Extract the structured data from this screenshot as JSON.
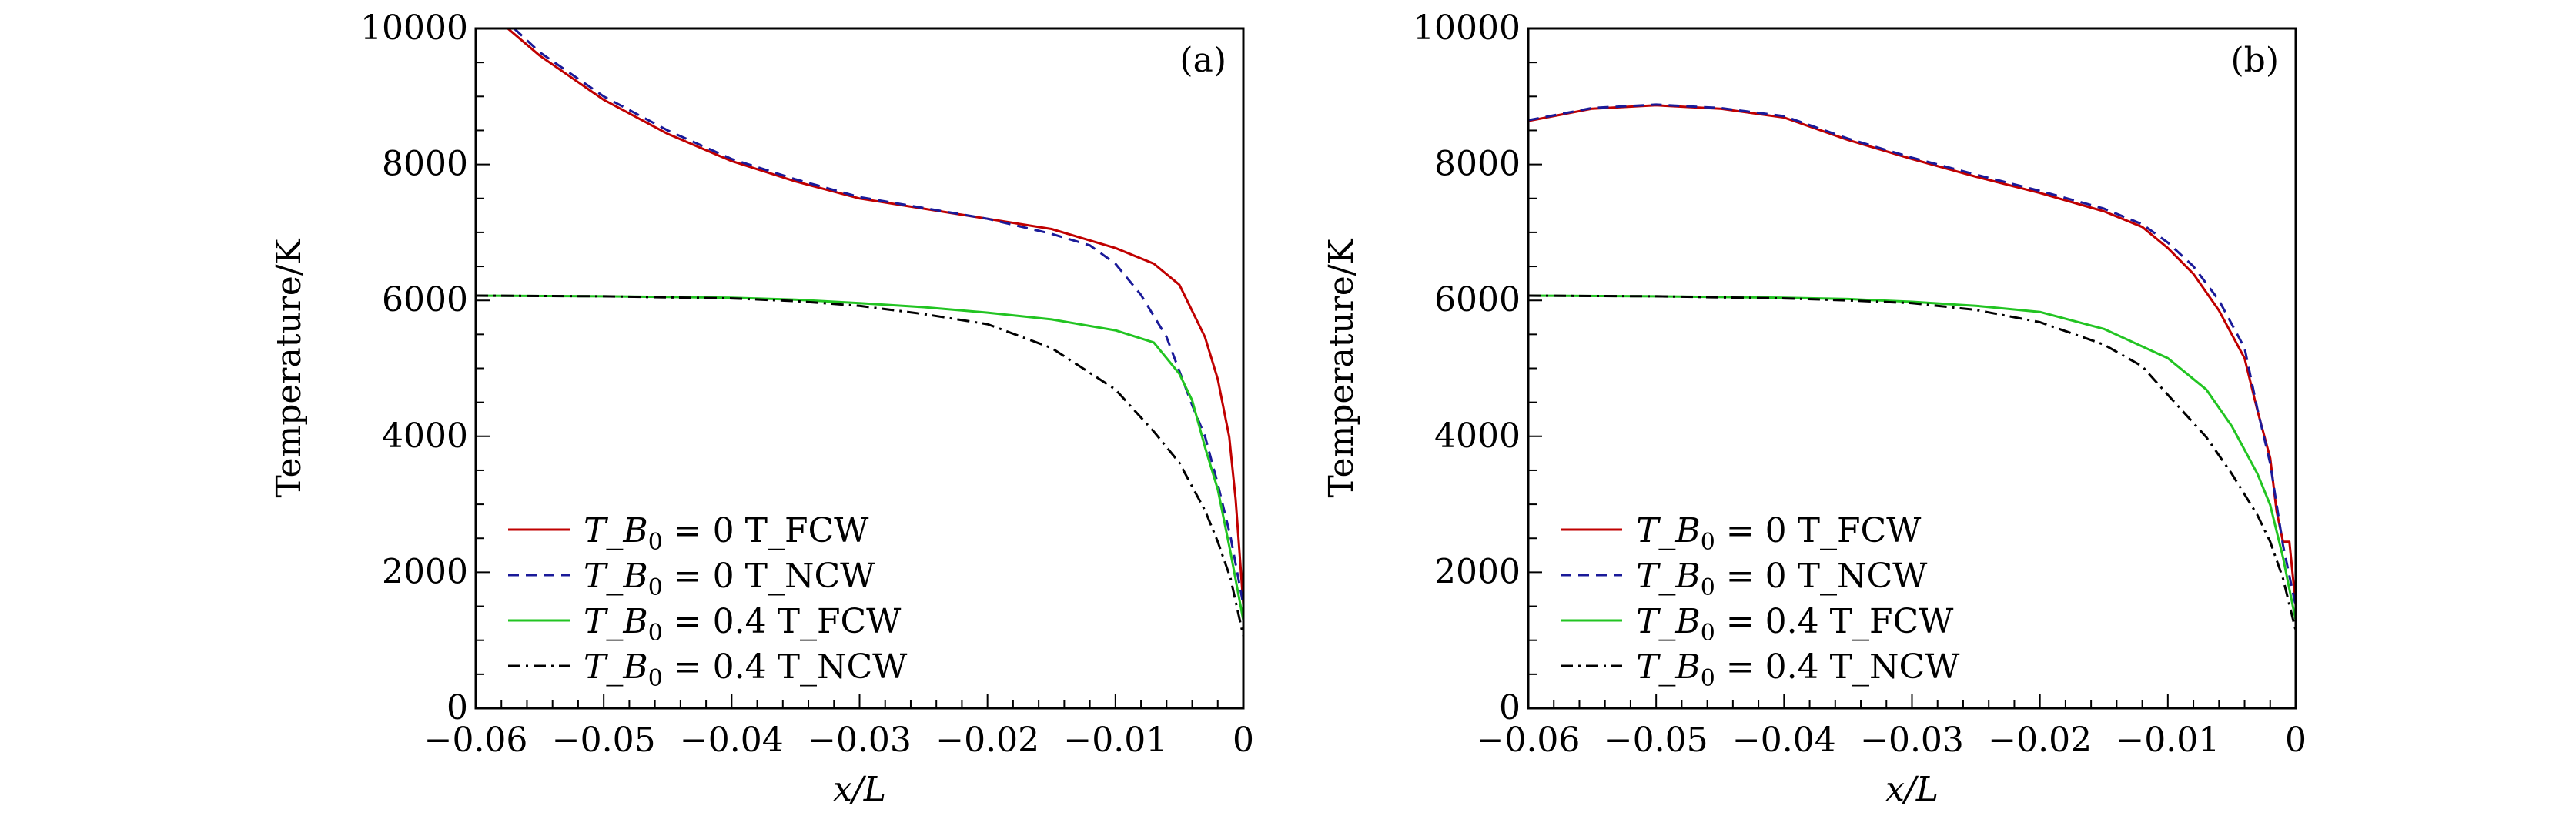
{
  "chart_data": [
    {
      "type": "line",
      "panel_label": "(a)",
      "xlabel": "x/L",
      "ylabel": "Temperature/K",
      "xlim": [
        -0.06,
        0
      ],
      "ylim": [
        0,
        10000
      ],
      "xticks": [
        -0.06,
        -0.05,
        -0.04,
        -0.03,
        -0.02,
        -0.01,
        0
      ],
      "xtick_labels": [
        "−0.06",
        "−0.05",
        "−0.04",
        "−0.03",
        "−0.02",
        "−0.01",
        "0"
      ],
      "yticks": [
        0,
        2000,
        4000,
        6000,
        8000,
        10000
      ],
      "ytick_labels": [
        "0",
        "2000",
        "4000",
        "6000",
        "8000",
        "10000"
      ],
      "grid": false,
      "legend_position": "bottom-left",
      "series": [
        {
          "name": "T_B0 = 0 T_FCW",
          "label_value": "0",
          "label_suffix": "T_FCW",
          "color": "#c00000",
          "dash": "solid",
          "x": [
            -0.0575,
            -0.055,
            -0.05,
            -0.045,
            -0.04,
            -0.035,
            -0.03,
            -0.025,
            -0.02,
            -0.015,
            -0.01,
            -0.007,
            -0.005,
            -0.003,
            -0.002,
            -0.0011,
            -0.0006,
            0
          ],
          "y": [
            10000,
            9600,
            8950,
            8450,
            8050,
            7750,
            7500,
            7350,
            7200,
            7050,
            6770,
            6540,
            6230,
            5460,
            4840,
            3990,
            3070,
            1520
          ]
        },
        {
          "name": "T_B0 = 0 T_NCW",
          "label_value": "0",
          "label_suffix": "T_NCW",
          "color": "#1a1a99",
          "dash": "dashed",
          "x": [
            -0.057,
            -0.055,
            -0.05,
            -0.045,
            -0.04,
            -0.035,
            -0.03,
            -0.025,
            -0.02,
            -0.015,
            -0.012,
            -0.01,
            -0.008,
            -0.006,
            -0.004,
            -0.003,
            -0.002,
            -0.001,
            0
          ],
          "y": [
            10000,
            9650,
            9000,
            8500,
            8080,
            7780,
            7520,
            7360,
            7200,
            6980,
            6810,
            6540,
            6080,
            5460,
            4460,
            4000,
            3300,
            2520,
            1520
          ]
        },
        {
          "name": "T_B0 = 0.4 T_FCW",
          "label_value": "0.4",
          "label_suffix": "T_FCW",
          "color": "#22c422",
          "dash": "solid",
          "x": [
            -0.06,
            -0.05,
            -0.04,
            -0.035,
            -0.03,
            -0.025,
            -0.02,
            -0.015,
            -0.01,
            -0.007,
            -0.005,
            -0.004,
            -0.003,
            -0.002,
            -0.001,
            0
          ],
          "y": [
            6070,
            6060,
            6040,
            6010,
            5960,
            5900,
            5820,
            5720,
            5560,
            5380,
            4920,
            4530,
            3840,
            3220,
            2290,
            1290
          ]
        },
        {
          "name": "T_B0 = 0.4 T_NCW",
          "label_value": "0.4",
          "label_suffix": "T_NCW",
          "color": "#000000",
          "dash": "dashdot",
          "x": [
            -0.06,
            -0.05,
            -0.04,
            -0.035,
            -0.03,
            -0.025,
            -0.02,
            -0.015,
            -0.01,
            -0.007,
            -0.005,
            -0.003,
            -0.002,
            -0.001,
            0
          ],
          "y": [
            6070,
            6060,
            6030,
            5990,
            5920,
            5800,
            5650,
            5300,
            4690,
            4070,
            3610,
            2910,
            2450,
            1910,
            1060
          ]
        }
      ]
    },
    {
      "type": "line",
      "panel_label": "(b)",
      "xlabel": "x/L",
      "ylabel": "Temperature/K",
      "xlim": [
        -0.06,
        0
      ],
      "ylim": [
        0,
        10000
      ],
      "xticks": [
        -0.06,
        -0.05,
        -0.04,
        -0.03,
        -0.02,
        -0.01,
        0
      ],
      "xtick_labels": [
        "−0.06",
        "−0.05",
        "−0.04",
        "−0.03",
        "−0.02",
        "−0.01",
        "0"
      ],
      "yticks": [
        0,
        2000,
        4000,
        6000,
        8000,
        10000
      ],
      "ytick_labels": [
        "0",
        "2000",
        "4000",
        "6000",
        "8000",
        "10000"
      ],
      "grid": false,
      "legend_position": "bottom-left",
      "series": [
        {
          "name": "T_B0 = 0 T_FCW",
          "label_value": "0",
          "label_suffix": "T_FCW",
          "color": "#c00000",
          "dash": "solid",
          "x": [
            -0.06,
            -0.055,
            -0.05,
            -0.045,
            -0.04,
            -0.035,
            -0.03,
            -0.025,
            -0.02,
            -0.015,
            -0.012,
            -0.01,
            -0.008,
            -0.006,
            -0.004,
            -0.003,
            -0.002,
            -0.0015,
            -0.001,
            -0.0005,
            0
          ],
          "y": [
            8640,
            8820,
            8870,
            8820,
            8690,
            8360,
            8080,
            7820,
            7580,
            7310,
            7080,
            6770,
            6390,
            5850,
            5150,
            4380,
            3680,
            2900,
            2450,
            2450,
            1520
          ]
        },
        {
          "name": "T_B0 = 0 T_NCW",
          "label_value": "0",
          "label_suffix": "T_NCW",
          "color": "#1a1a99",
          "dash": "dashed",
          "x": [
            -0.06,
            -0.055,
            -0.05,
            -0.045,
            -0.04,
            -0.035,
            -0.03,
            -0.025,
            -0.02,
            -0.015,
            -0.012,
            -0.01,
            -0.008,
            -0.006,
            -0.004,
            -0.003,
            -0.002,
            -0.001,
            0
          ],
          "y": [
            8650,
            8830,
            8880,
            8830,
            8710,
            8380,
            8100,
            7850,
            7610,
            7350,
            7120,
            6850,
            6500,
            6000,
            5300,
            4400,
            3600,
            2400,
            1500
          ]
        },
        {
          "name": "T_B0 = 0.4 T_FCW",
          "label_value": "0.4",
          "label_suffix": "T_FCW",
          "color": "#22c422",
          "dash": "solid",
          "x": [
            -0.06,
            -0.05,
            -0.04,
            -0.035,
            -0.03,
            -0.025,
            -0.02,
            -0.015,
            -0.01,
            -0.007,
            -0.005,
            -0.003,
            -0.002,
            -0.001,
            0
          ],
          "y": [
            6070,
            6060,
            6040,
            6020,
            5980,
            5920,
            5830,
            5580,
            5150,
            4690,
            4150,
            3450,
            2990,
            2220,
            1290
          ]
        },
        {
          "name": "T_B0 = 0.4 T_NCW",
          "label_value": "0.4",
          "label_suffix": "T_NCW",
          "color": "#000000",
          "dash": "dashdot",
          "x": [
            -0.06,
            -0.05,
            -0.04,
            -0.035,
            -0.03,
            -0.025,
            -0.02,
            -0.015,
            -0.012,
            -0.01,
            -0.007,
            -0.005,
            -0.003,
            -0.002,
            -0.001,
            0
          ],
          "y": [
            6070,
            6060,
            6030,
            6000,
            5960,
            5860,
            5680,
            5350,
            5030,
            4610,
            3990,
            3450,
            2840,
            2450,
            1910,
            1140
          ]
        }
      ]
    }
  ]
}
